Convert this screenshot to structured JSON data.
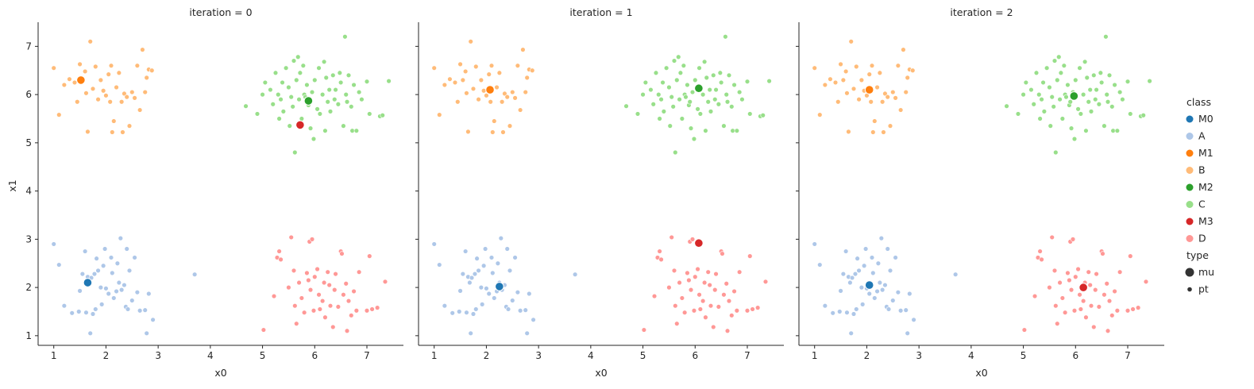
{
  "chart_data": {
    "type": "scatter",
    "facet_label": "iteration",
    "xlabel": "x0",
    "ylabel": "x1",
    "xlim": [
      0.7,
      7.7
    ],
    "ylim": [
      0.8,
      7.5
    ],
    "xticks": [
      1,
      2,
      3,
      4,
      5,
      6,
      7
    ],
    "yticks": [
      1,
      2,
      3,
      4,
      5,
      6,
      7
    ],
    "legend_position": "right",
    "legend": {
      "class_title": "class",
      "classes": [
        {
          "name": "M0",
          "color": "#1f77b4"
        },
        {
          "name": "A",
          "color": "#aec7e8"
        },
        {
          "name": "M1",
          "color": "#ff7f0e"
        },
        {
          "name": "B",
          "color": "#ffbb78"
        },
        {
          "name": "M2",
          "color": "#2ca02c"
        },
        {
          "name": "C",
          "color": "#98df8a"
        },
        {
          "name": "M3",
          "color": "#d62728"
        },
        {
          "name": "D",
          "color": "#ff9896"
        }
      ],
      "type_title": "type",
      "types": [
        {
          "name": "mu",
          "size": "large"
        },
        {
          "name": "pt",
          "size": "small"
        }
      ]
    },
    "points": {
      "A": [
        [
          1.0,
          2.9
        ],
        [
          1.1,
          2.47
        ],
        [
          1.2,
          1.62
        ],
        [
          1.35,
          1.47
        ],
        [
          1.48,
          1.5
        ],
        [
          1.5,
          1.93
        ],
        [
          1.55,
          2.28
        ],
        [
          1.6,
          2.75
        ],
        [
          1.62,
          1.48
        ],
        [
          1.65,
          2.22
        ],
        [
          1.68,
          2.1
        ],
        [
          1.7,
          1.05
        ],
        [
          1.72,
          2.2
        ],
        [
          1.75,
          1.45
        ],
        [
          1.78,
          2.28
        ],
        [
          1.8,
          1.55
        ],
        [
          1.82,
          2.6
        ],
        [
          1.85,
          2.35
        ],
        [
          1.9,
          2.0
        ],
        [
          1.92,
          1.65
        ],
        [
          1.95,
          2.45
        ],
        [
          1.98,
          2.8
        ],
        [
          2.0,
          1.98
        ],
        [
          2.05,
          1.87
        ],
        [
          2.1,
          2.62
        ],
        [
          2.12,
          2.3
        ],
        [
          2.15,
          1.78
        ],
        [
          2.2,
          1.92
        ],
        [
          2.22,
          2.5
        ],
        [
          2.25,
          2.1
        ],
        [
          2.28,
          3.02
        ],
        [
          2.3,
          1.95
        ],
        [
          2.35,
          2.05
        ],
        [
          2.38,
          1.6
        ],
        [
          2.4,
          2.8
        ],
        [
          2.42,
          1.55
        ],
        [
          2.45,
          2.35
        ],
        [
          2.5,
          1.73
        ],
        [
          2.55,
          2.62
        ],
        [
          2.6,
          1.9
        ],
        [
          2.65,
          1.52
        ],
        [
          2.75,
          1.53
        ],
        [
          2.78,
          1.05
        ],
        [
          2.82,
          1.87
        ],
        [
          2.9,
          1.33
        ],
        [
          3.7,
          2.27
        ]
      ],
      "B": [
        [
          1.0,
          6.55
        ],
        [
          1.1,
          5.58
        ],
        [
          1.2,
          6.2
        ],
        [
          1.3,
          6.32
        ],
        [
          1.4,
          6.25
        ],
        [
          1.45,
          5.85
        ],
        [
          1.5,
          6.63
        ],
        [
          1.55,
          6.3
        ],
        [
          1.6,
          6.48
        ],
        [
          1.62,
          6.03
        ],
        [
          1.65,
          5.23
        ],
        [
          1.7,
          7.1
        ],
        [
          1.75,
          6.12
        ],
        [
          1.8,
          6.58
        ],
        [
          1.85,
          5.9
        ],
        [
          1.9,
          6.3
        ],
        [
          1.95,
          6.08
        ],
        [
          2.0,
          5.98
        ],
        [
          2.05,
          6.42
        ],
        [
          2.08,
          5.85
        ],
        [
          2.1,
          6.6
        ],
        [
          2.12,
          5.22
        ],
        [
          2.15,
          5.45
        ],
        [
          2.2,
          6.15
        ],
        [
          2.25,
          6.45
        ],
        [
          2.3,
          5.85
        ],
        [
          2.32,
          5.22
        ],
        [
          2.35,
          6.02
        ],
        [
          2.4,
          5.95
        ],
        [
          2.45,
          5.35
        ],
        [
          2.5,
          6.05
        ],
        [
          2.55,
          5.93
        ],
        [
          2.6,
          6.6
        ],
        [
          2.65,
          5.68
        ],
        [
          2.7,
          6.93
        ],
        [
          2.75,
          6.05
        ],
        [
          2.78,
          6.35
        ],
        [
          2.82,
          6.52
        ],
        [
          2.88,
          6.5
        ]
      ],
      "C": [
        [
          4.68,
          5.76
        ],
        [
          4.9,
          5.6
        ],
        [
          5.0,
          6.0
        ],
        [
          5.05,
          6.25
        ],
        [
          5.15,
          6.1
        ],
        [
          5.2,
          5.8
        ],
        [
          5.25,
          6.45
        ],
        [
          5.3,
          6.0
        ],
        [
          5.32,
          5.5
        ],
        [
          5.35,
          5.9
        ],
        [
          5.38,
          6.25
        ],
        [
          5.4,
          5.65
        ],
        [
          5.45,
          6.55
        ],
        [
          5.5,
          6.15
        ],
        [
          5.52,
          5.35
        ],
        [
          5.55,
          5.95
        ],
        [
          5.58,
          5.75
        ],
        [
          5.6,
          6.7
        ],
        [
          5.62,
          4.8
        ],
        [
          5.65,
          6.3
        ],
        [
          5.68,
          6.78
        ],
        [
          5.7,
          5.9
        ],
        [
          5.72,
          6.45
        ],
        [
          5.75,
          5.5
        ],
        [
          5.78,
          6.6
        ],
        [
          5.8,
          6.0
        ],
        [
          5.82,
          5.95
        ],
        [
          5.85,
          6.2
        ],
        [
          5.88,
          5.78
        ],
        [
          5.9,
          5.85
        ],
        [
          5.92,
          5.3
        ],
        [
          5.95,
          6.05
        ],
        [
          5.98,
          5.08
        ],
        [
          6.0,
          6.3
        ],
        [
          6.05,
          5.7
        ],
        [
          6.08,
          6.55
        ],
        [
          6.1,
          5.6
        ],
        [
          6.15,
          6.0
        ],
        [
          6.18,
          6.68
        ],
        [
          6.2,
          5.25
        ],
        [
          6.22,
          6.35
        ],
        [
          6.25,
          5.85
        ],
        [
          6.28,
          6.1
        ],
        [
          6.3,
          5.65
        ],
        [
          6.35,
          6.4
        ],
        [
          6.38,
          5.9
        ],
        [
          6.4,
          6.1
        ],
        [
          6.45,
          5.8
        ],
        [
          6.48,
          6.45
        ],
        [
          6.5,
          6.25
        ],
        [
          6.55,
          5.35
        ],
        [
          6.58,
          7.2
        ],
        [
          6.6,
          6.0
        ],
        [
          6.62,
          5.85
        ],
        [
          6.65,
          6.4
        ],
        [
          6.7,
          5.75
        ],
        [
          6.72,
          5.25
        ],
        [
          6.75,
          6.2
        ],
        [
          6.8,
          5.25
        ],
        [
          6.85,
          6.05
        ],
        [
          6.9,
          5.9
        ],
        [
          7.0,
          6.27
        ],
        [
          7.05,
          5.6
        ],
        [
          7.25,
          5.55
        ],
        [
          7.3,
          5.57
        ],
        [
          7.42,
          6.28
        ]
      ],
      "D": [
        [
          5.02,
          1.12
        ],
        [
          5.22,
          1.82
        ],
        [
          5.28,
          2.62
        ],
        [
          5.32,
          2.75
        ],
        [
          5.35,
          2.58
        ],
        [
          5.5,
          2.0
        ],
        [
          5.55,
          3.04
        ],
        [
          5.6,
          2.35
        ],
        [
          5.62,
          1.62
        ],
        [
          5.65,
          1.25
        ],
        [
          5.7,
          2.1
        ],
        [
          5.75,
          1.78
        ],
        [
          5.8,
          1.48
        ],
        [
          5.85,
          2.3
        ],
        [
          5.88,
          2.15
        ],
        [
          5.9,
          2.95
        ],
        [
          5.92,
          1.95
        ],
        [
          5.95,
          3.0
        ],
        [
          5.98,
          1.52
        ],
        [
          6.0,
          2.22
        ],
        [
          6.05,
          2.38
        ],
        [
          6.08,
          1.85
        ],
        [
          6.1,
          1.55
        ],
        [
          6.15,
          1.72
        ],
        [
          6.18,
          2.1
        ],
        [
          6.2,
          1.38
        ],
        [
          6.25,
          2.32
        ],
        [
          6.28,
          2.05
        ],
        [
          6.3,
          1.62
        ],
        [
          6.35,
          1.18
        ],
        [
          6.38,
          1.95
        ],
        [
          6.4,
          2.28
        ],
        [
          6.45,
          1.6
        ],
        [
          6.5,
          2.75
        ],
        [
          6.52,
          2.7
        ],
        [
          6.55,
          1.85
        ],
        [
          6.6,
          2.08
        ],
        [
          6.62,
          1.1
        ],
        [
          6.65,
          1.72
        ],
        [
          6.7,
          1.42
        ],
        [
          6.75,
          1.92
        ],
        [
          6.8,
          1.52
        ],
        [
          6.85,
          2.32
        ],
        [
          7.0,
          1.52
        ],
        [
          7.05,
          2.65
        ],
        [
          7.1,
          1.55
        ],
        [
          7.2,
          1.58
        ],
        [
          7.35,
          2.12
        ]
      ]
    },
    "facets": [
      {
        "iteration": "0",
        "title": "iteration = 0",
        "mu": {
          "M0": [
            1.65,
            2.1
          ],
          "M1": [
            1.52,
            6.3
          ],
          "M2": [
            5.88,
            5.87
          ],
          "M3": [
            5.72,
            5.37
          ]
        }
      },
      {
        "iteration": "1",
        "title": "iteration = 1",
        "mu": {
          "M0": [
            2.25,
            2.02
          ],
          "M1": [
            2.07,
            6.1
          ],
          "M2": [
            6.07,
            6.13
          ],
          "M3": [
            6.07,
            2.92
          ]
        }
      },
      {
        "iteration": "2",
        "title": "iteration = 2",
        "mu": {
          "M0": [
            2.05,
            2.05
          ],
          "M1": [
            2.05,
            6.1
          ],
          "M2": [
            5.97,
            5.97
          ],
          "M3": [
            6.15,
            2.0
          ]
        }
      }
    ]
  }
}
